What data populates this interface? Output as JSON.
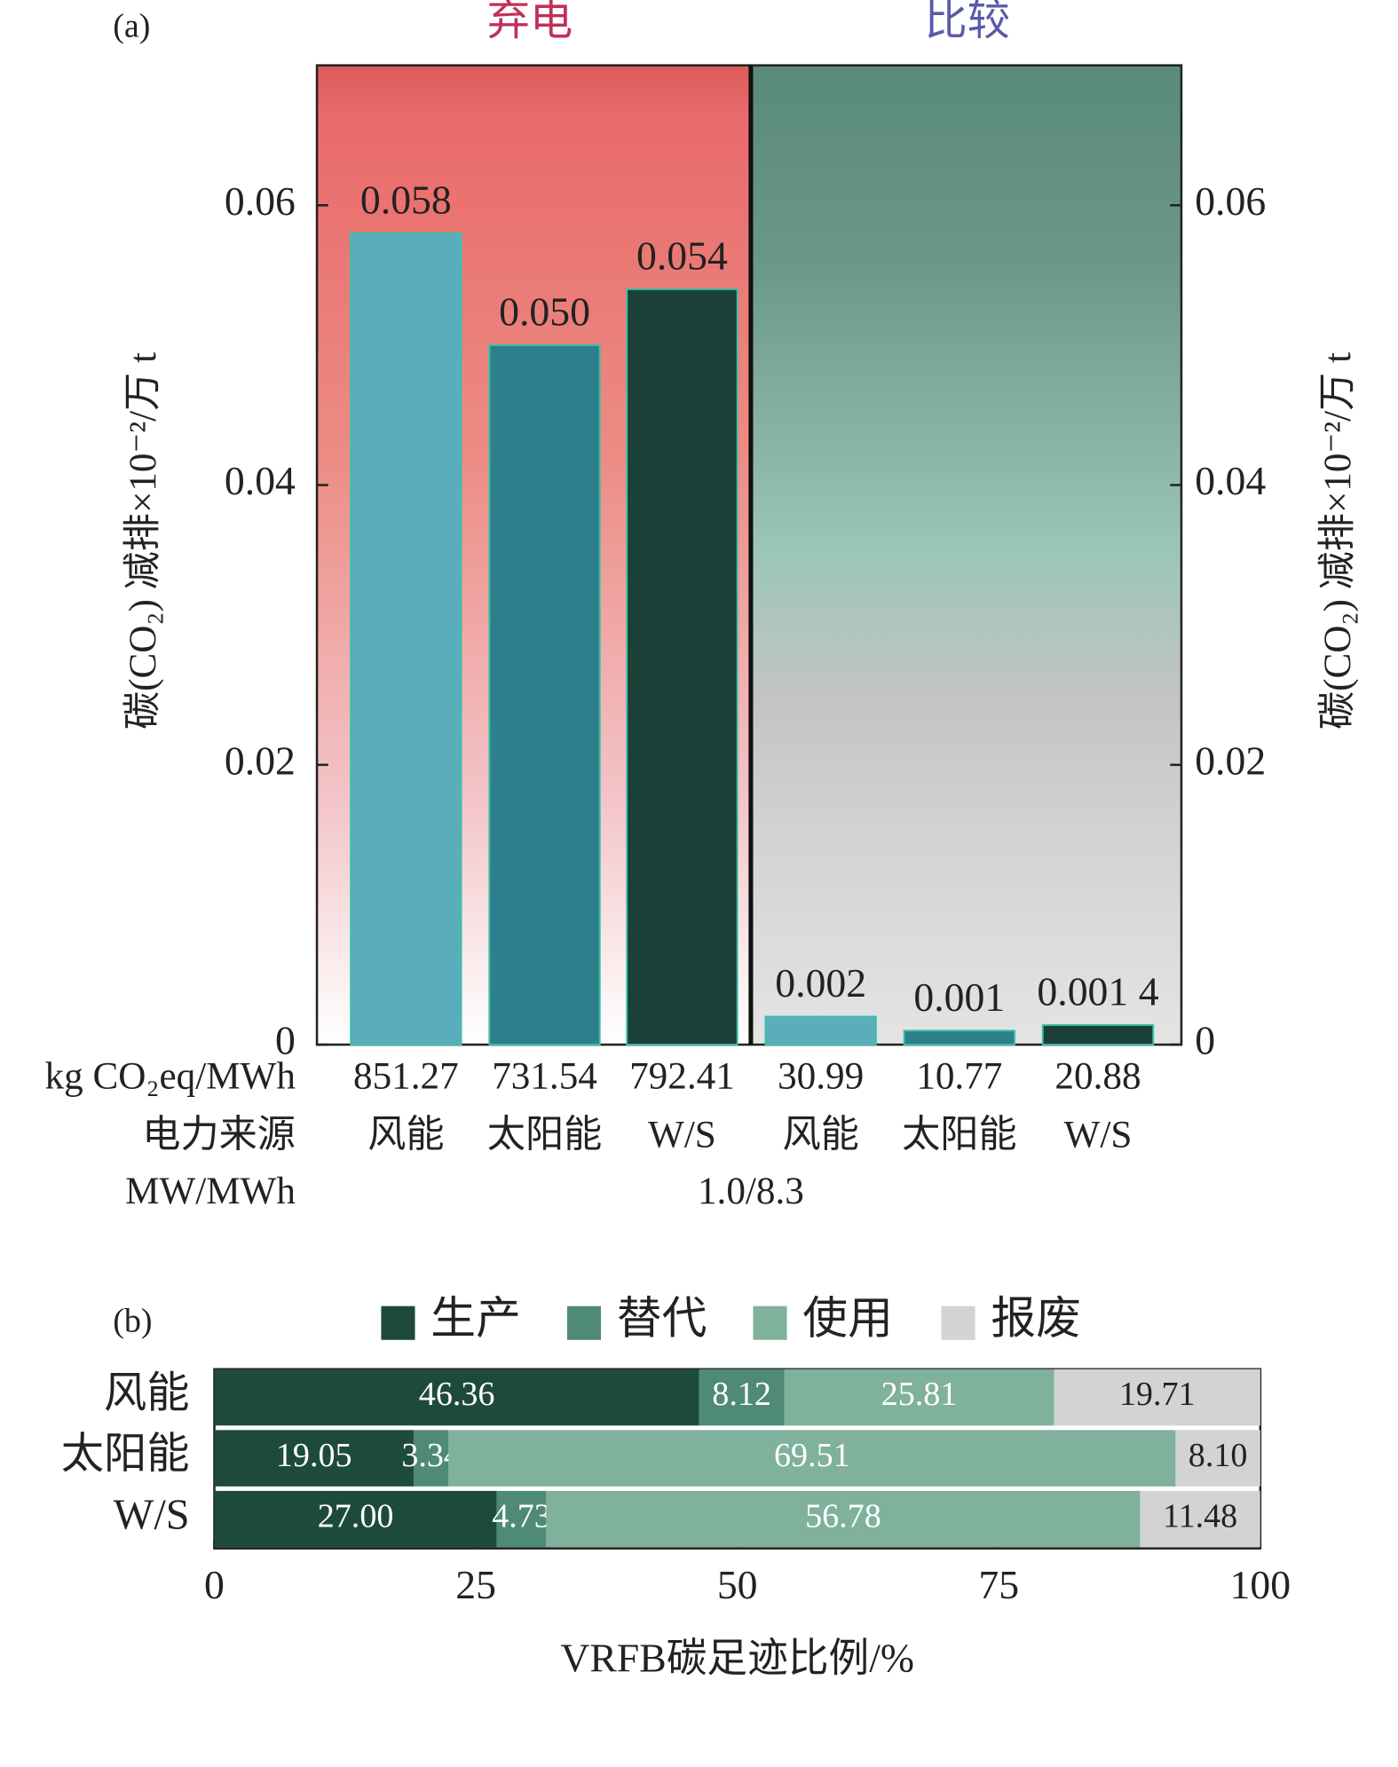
{
  "chart_data": [
    {
      "type": "bar",
      "panel_label": "(a)",
      "section_titles": [
        "弃电",
        "比较"
      ],
      "ylabel": "碳(CO₂) 减排×10⁻²/万 t",
      "categories": [
        "风能",
        "太阳能",
        "W/S",
        "风能",
        "太阳能",
        "W/S"
      ],
      "values": [
        0.058,
        0.05,
        0.054,
        0.002,
        0.001,
        0.0014
      ],
      "value_labels": [
        "0.058",
        "0.050",
        "0.054",
        "0.002",
        "0.001",
        "0.001 4"
      ],
      "colors": [
        "#5aaebb",
        "#2e7f8c",
        "#1a4038",
        "#5aaebb",
        "#2e7f8c",
        "#1a4038"
      ],
      "ylim": [
        0,
        0.07
      ],
      "yticks": [
        0,
        0.02,
        0.04,
        0.06
      ],
      "emission_label": "kg CO₂eq/MWh",
      "emission_factors": [
        851.27,
        731.54,
        792.41,
        30.99,
        10.77,
        20.88
      ],
      "source_label": "电力来源",
      "capacity_label": "MW/MWh",
      "capacity": "1.0/8.3"
    },
    {
      "type": "stacked_barh",
      "panel_label": "(b)",
      "categories": [
        "风能",
        "太阳能",
        "W/S"
      ],
      "series": [
        {
          "name": "生产",
          "color": "#1e4a3c",
          "values": [
            46.36,
            19.05,
            27.0
          ],
          "value_labels": [
            "46.36",
            "19.05",
            "27.00"
          ]
        },
        {
          "name": "替代",
          "color": "#4f8a76",
          "values": [
            8.12,
            3.34,
            4.73
          ]
        },
        {
          "name": "使用",
          "color": "#7fb19d",
          "values": [
            25.81,
            69.51,
            56.78
          ]
        },
        {
          "name": "报废",
          "color": "#d3d3d3",
          "values": [
            19.71,
            8.1,
            11.48
          ],
          "value_labels": [
            "19.71",
            "8.10",
            "11.48"
          ]
        }
      ],
      "xlim": [
        0,
        100
      ],
      "xticks": [
        0,
        25,
        50,
        75,
        100
      ],
      "xlabel": "VRFB碳足迹比例/%"
    }
  ]
}
